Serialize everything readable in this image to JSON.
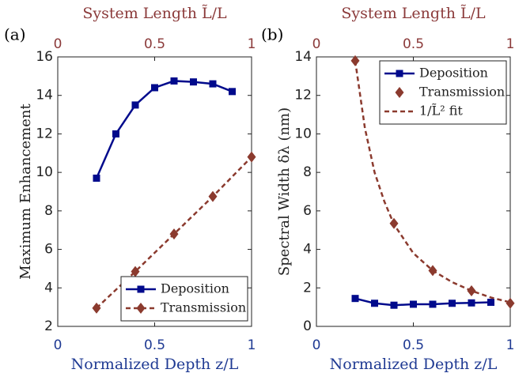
{
  "chart_data": [
    {
      "type": "line",
      "panel_label": "(a)",
      "xlabel": "Normalized Depth z/L",
      "x2label": "System Length L̃/L",
      "ylabel": "Maximum Enhancement",
      "xlim": [
        0,
        1
      ],
      "xticks": [
        0,
        0.5,
        1
      ],
      "x2lim": [
        0,
        1
      ],
      "x2ticks": [
        0,
        0.5,
        1
      ],
      "ylim": [
        2,
        16
      ],
      "yticks": [
        2,
        4,
        6,
        8,
        10,
        12,
        14,
        16
      ],
      "legend": "lower right",
      "series": [
        {
          "name": "Deposition",
          "color": "#000a8c",
          "line": "solid",
          "marker": "square",
          "x": [
            0.2,
            0.3,
            0.4,
            0.5,
            0.6,
            0.7,
            0.8,
            0.9
          ],
          "values": [
            9.7,
            12.0,
            13.5,
            14.4,
            14.75,
            14.7,
            14.6,
            14.2
          ]
        },
        {
          "name": "Transmission",
          "color": "#8b3a2e",
          "line": "dashed",
          "marker": "diamond",
          "x": [
            0.2,
            0.4,
            0.6,
            0.8,
            1.0
          ],
          "values": [
            2.95,
            4.85,
            6.8,
            8.75,
            10.8
          ]
        }
      ]
    },
    {
      "type": "line",
      "panel_label": "(b)",
      "xlabel": "Normalized Depth z/L",
      "x2label": "System Length L̃/L",
      "ylabel": "Spectral Width δλ (nm)",
      "xlim": [
        0,
        1
      ],
      "xticks": [
        0,
        0.5,
        1
      ],
      "x2lim": [
        0,
        1
      ],
      "x2ticks": [
        0,
        0.5,
        1
      ],
      "ylim": [
        0,
        14
      ],
      "yticks": [
        0,
        2,
        4,
        6,
        8,
        10,
        12,
        14
      ],
      "legend": "upper right",
      "series": [
        {
          "name": "Deposition",
          "color": "#000a8c",
          "line": "solid",
          "marker": "square",
          "x": [
            0.2,
            0.3,
            0.4,
            0.5,
            0.6,
            0.7,
            0.8,
            0.9
          ],
          "values": [
            1.45,
            1.2,
            1.1,
            1.15,
            1.15,
            1.2,
            1.22,
            1.25
          ]
        },
        {
          "name": "Transmission",
          "color": "#8b3a2e",
          "line": "none",
          "marker": "diamond",
          "x": [
            0.2,
            0.4,
            0.6,
            0.8,
            1.0
          ],
          "values": [
            13.8,
            5.35,
            2.9,
            1.85,
            1.2
          ]
        },
        {
          "name": "1/L̃² fit",
          "color": "#8b3a2e",
          "line": "dashed",
          "marker": "none",
          "x": [
            0.2,
            0.25,
            0.3,
            0.35,
            0.4,
            0.5,
            0.6,
            0.7,
            0.8,
            0.9,
            1.0
          ],
          "values": [
            13.8,
            10.3,
            8.0,
            6.5,
            5.3,
            3.8,
            2.9,
            2.3,
            1.85,
            1.5,
            1.25
          ]
        }
      ]
    }
  ]
}
